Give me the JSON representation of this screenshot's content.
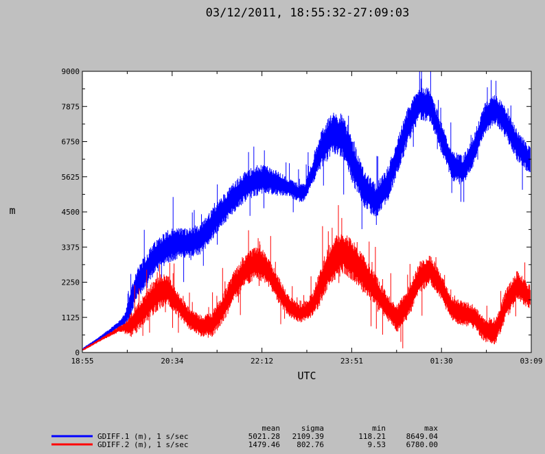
{
  "chart_data": {
    "type": "line",
    "title": "03/12/2011, 18:55:32-27:09:03",
    "xlabel": "UTC",
    "ylabel": "m",
    "x_ticks": [
      "18:55",
      "20:34",
      "22:12",
      "23:51",
      "01:30",
      "03:09"
    ],
    "y_ticks": [
      "0",
      "1125",
      "2250",
      "3375",
      "4500",
      "5625",
      "6750",
      "7875",
      "9000"
    ],
    "ylim": [
      0,
      9000
    ],
    "xlim_hours": [
      18.925,
      27.15
    ],
    "grid": false,
    "series": [
      {
        "name": "GDIFF.1 (m), 1 s/sec",
        "color": "#0000ff",
        "x_hours": [
          18.93,
          19.15,
          19.4,
          19.6,
          19.7,
          19.8,
          19.9,
          20.05,
          20.2,
          20.35,
          20.5,
          20.7,
          20.9,
          21.1,
          21.3,
          21.5,
          21.7,
          21.9,
          22.1,
          22.3,
          22.5,
          22.7,
          22.9,
          23.0,
          23.15,
          23.3,
          23.5,
          23.7,
          23.9,
          24.1,
          24.3,
          24.5,
          24.7,
          24.9,
          25.1,
          25.3,
          25.5,
          25.7,
          25.9,
          26.1,
          26.3,
          26.5,
          26.7,
          26.9,
          27.1
        ],
        "values": [
          100,
          350,
          650,
          900,
          1050,
          1500,
          2100,
          2500,
          2900,
          3200,
          3400,
          3500,
          3500,
          3650,
          4100,
          4550,
          4950,
          5300,
          5500,
          5550,
          5400,
          5300,
          5100,
          5150,
          5800,
          6500,
          7000,
          6900,
          6000,
          5200,
          4850,
          5300,
          6300,
          7300,
          8000,
          7900,
          6900,
          6000,
          5800,
          6500,
          7500,
          7800,
          7300,
          6600,
          6200
        ],
        "band": [
          50,
          50,
          80,
          120,
          200,
          400,
          500,
          550,
          550,
          550,
          550,
          500,
          500,
          500,
          500,
          500,
          500,
          500,
          500,
          450,
          400,
          300,
          300,
          300,
          400,
          600,
          700,
          700,
          700,
          600,
          550,
          550,
          600,
          600,
          550,
          550,
          500,
          500,
          500,
          500,
          500,
          500,
          500,
          500,
          450
        ]
      },
      {
        "name": "GDIFF.2 (m), 1 s/sec",
        "color": "#ff0000",
        "x_hours": [
          18.93,
          19.15,
          19.4,
          19.6,
          19.7,
          19.8,
          19.9,
          20.05,
          20.2,
          20.35,
          20.5,
          20.7,
          20.9,
          21.1,
          21.3,
          21.5,
          21.7,
          21.9,
          22.1,
          22.3,
          22.5,
          22.7,
          22.9,
          23.0,
          23.15,
          23.3,
          23.5,
          23.7,
          23.9,
          24.1,
          24.3,
          24.5,
          24.7,
          24.9,
          25.1,
          25.3,
          25.5,
          25.7,
          25.9,
          26.1,
          26.3,
          26.5,
          26.7,
          26.9,
          27.1
        ],
        "values": [
          80,
          300,
          550,
          750,
          800,
          850,
          1050,
          1350,
          1700,
          1950,
          2000,
          1500,
          1050,
          850,
          900,
          1400,
          2100,
          2600,
          2900,
          2700,
          2050,
          1500,
          1250,
          1300,
          1550,
          2200,
          2950,
          3200,
          2900,
          2450,
          2000,
          1450,
          1100,
          1600,
          2400,
          2650,
          2100,
          1400,
          1250,
          1150,
          700,
          700,
          1600,
          2150,
          1800
        ],
        "band": [
          40,
          40,
          60,
          100,
          150,
          400,
          450,
          500,
          550,
          550,
          500,
          400,
          350,
          350,
          400,
          500,
          500,
          500,
          550,
          500,
          450,
          350,
          300,
          300,
          400,
          650,
          700,
          700,
          650,
          600,
          500,
          450,
          450,
          500,
          500,
          500,
          450,
          400,
          400,
          400,
          400,
          450,
          500,
          500,
          400
        ]
      }
    ],
    "stats_columns": [
      "mean",
      "sigma",
      "min",
      "max"
    ],
    "stats_rows": [
      {
        "label": "GDIFF.1 (m), 1 s/sec",
        "color": "#0000ff",
        "values": [
          "5021.28",
          "2109.39",
          "118.21",
          "8649.04"
        ]
      },
      {
        "label": "GDIFF.2 (m), 1 s/sec",
        "color": "#ff0000",
        "values": [
          "1479.46",
          "802.76",
          "9.53",
          "6780.00"
        ]
      }
    ]
  }
}
